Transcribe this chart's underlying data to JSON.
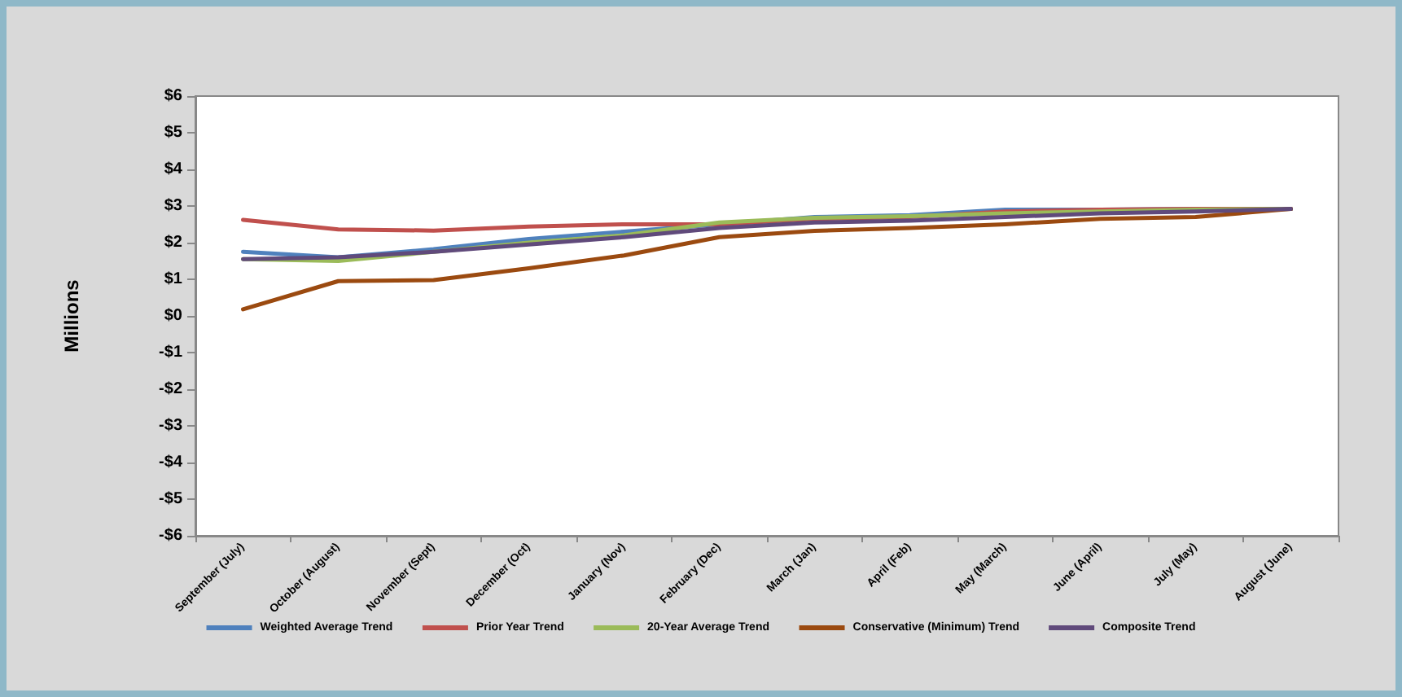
{
  "chart_data": {
    "type": "line",
    "ylabel": "Millions",
    "categories": [
      "September (July)",
      "October (August)",
      "November (Sept)",
      "December (Oct)",
      "January (Nov)",
      "February (Dec)",
      "March (Jan)",
      "April (Feb)",
      "May (March)",
      "June (April)",
      "July (May)",
      "August (June)"
    ],
    "series": [
      {
        "name": "Weighted Average Trend",
        "color": "#4f81bd",
        "values": [
          1.75,
          1.6,
          1.82,
          2.1,
          2.3,
          2.5,
          2.7,
          2.75,
          2.9,
          2.9,
          2.92,
          2.92
        ]
      },
      {
        "name": "Prior Year Trend",
        "color": "#c0504d",
        "values": [
          2.62,
          2.36,
          2.33,
          2.44,
          2.5,
          2.5,
          2.65,
          2.7,
          2.85,
          2.9,
          2.92,
          2.92
        ]
      },
      {
        "name": "20-Year Average Trend",
        "color": "#9bbb59",
        "values": [
          1.55,
          1.5,
          1.75,
          2.0,
          2.2,
          2.55,
          2.68,
          2.72,
          2.8,
          2.85,
          2.9,
          2.92
        ]
      },
      {
        "name": "Conservative (Minimum) Trend",
        "color": "#9b4a10",
        "values": [
          0.18,
          0.95,
          0.98,
          1.3,
          1.65,
          2.15,
          2.32,
          2.4,
          2.5,
          2.65,
          2.7,
          2.92
        ]
      },
      {
        "name": "Composite Trend",
        "color": "#604a7b",
        "values": [
          1.55,
          1.6,
          1.75,
          1.95,
          2.15,
          2.4,
          2.55,
          2.6,
          2.7,
          2.8,
          2.85,
          2.92
        ]
      }
    ],
    "ylim": [
      -6,
      6
    ],
    "yticks": [
      {
        "value": 6,
        "label": "$6"
      },
      {
        "value": 5,
        "label": "$5"
      },
      {
        "value": 4,
        "label": "$4"
      },
      {
        "value": 3,
        "label": "$3"
      },
      {
        "value": 2,
        "label": "$2"
      },
      {
        "value": 1,
        "label": "$1"
      },
      {
        "value": 0,
        "label": "$0"
      },
      {
        "value": -1,
        "label": "-$1"
      },
      {
        "value": -2,
        "label": "-$2"
      },
      {
        "value": -3,
        "label": "-$3"
      },
      {
        "value": -4,
        "label": "-$4"
      },
      {
        "value": -5,
        "label": "-$5"
      },
      {
        "value": -6,
        "label": "-$6"
      }
    ],
    "grid": false,
    "legend": "bottom",
    "marker": "none",
    "line_style": "solid"
  }
}
